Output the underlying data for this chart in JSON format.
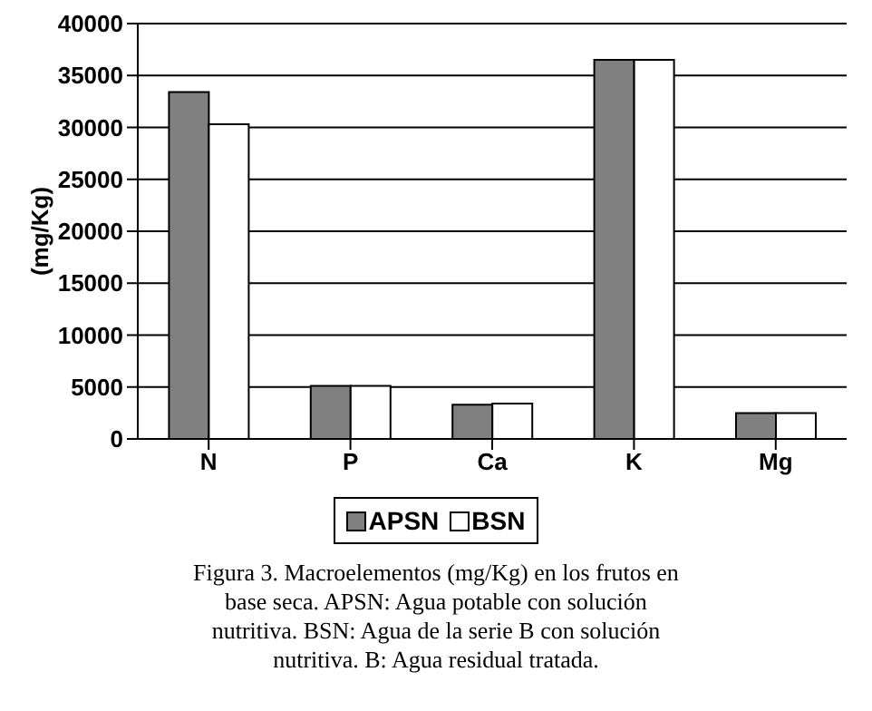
{
  "chart_data": {
    "type": "bar",
    "ylabel": "(mg/Kg)",
    "categories": [
      "N",
      "P",
      "Ca",
      "K",
      "Mg"
    ],
    "series": [
      {
        "name": "APSN",
        "color": "#808080",
        "values": [
          33400,
          5100,
          3300,
          36500,
          2500
        ]
      },
      {
        "name": "BSN",
        "color": "#ffffff",
        "values": [
          30300,
          5100,
          3400,
          36500,
          2500
        ]
      }
    ],
    "ylim": [
      0,
      40000
    ],
    "yticks": [
      0,
      5000,
      10000,
      15000,
      20000,
      25000,
      30000,
      35000,
      40000
    ],
    "grid": "y",
    "legend": "bottom",
    "annotations": [
      "Figura 3. Macroelementos (mg/Kg) en los frutos en base seca. APSN: Agua potable con solución nutritiva. BSN: Agua de la serie B con solución nutritiva. B: Agua residual tratada."
    ]
  }
}
